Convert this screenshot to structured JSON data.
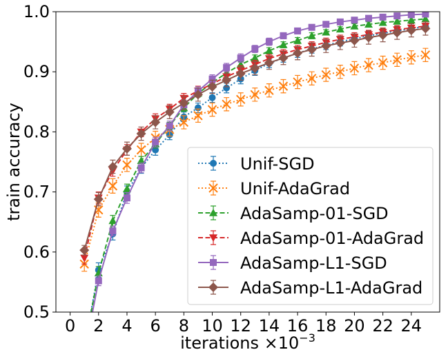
{
  "chart_data": {
    "type": "line",
    "xlabel": "iterations ×10",
    "xlabel_exponent": "−3",
    "ylabel": "train accuracy",
    "xlim": [
      -1,
      26
    ],
    "ylim": [
      0.5,
      1.0
    ],
    "xticks": [
      0,
      2,
      4,
      6,
      8,
      10,
      12,
      14,
      16,
      18,
      20,
      22,
      24
    ],
    "yticks": [
      0.5,
      0.6,
      0.7,
      0.8,
      0.9,
      1.0
    ],
    "ytick_labels": [
      "0.5",
      "0.6",
      "0.7",
      "0.8",
      "0.9",
      "1.0"
    ],
    "grid": false,
    "legend_position": "lower-right",
    "x": [
      1,
      2,
      3,
      4,
      5,
      6,
      7,
      8,
      9,
      10,
      11,
      12,
      13,
      14,
      15,
      16,
      17,
      18,
      19,
      20,
      21,
      22,
      23,
      24,
      25
    ],
    "series": [
      {
        "name": "Unif-SGD",
        "color": "#1f77b4",
        "linestyle": "dotted",
        "marker": "circle",
        "values": [
          0.44,
          0.57,
          0.63,
          0.7,
          0.74,
          0.77,
          0.795,
          0.825,
          0.84,
          0.857,
          0.873,
          0.888,
          0.902,
          0.914,
          0.923,
          0.931,
          0.938,
          0.944,
          0.95,
          0.955,
          0.96,
          0.964,
          0.968,
          0.972,
          0.975
        ],
        "errors": [
          0.01,
          0.012,
          0.01,
          0.01,
          0.009,
          0.009,
          0.008,
          0.008,
          0.008,
          0.008,
          0.008,
          0.008,
          0.008,
          0.007,
          0.007,
          0.007,
          0.007,
          0.007,
          0.007,
          0.006,
          0.006,
          0.006,
          0.006,
          0.006,
          0.006
        ]
      },
      {
        "name": "Unif-AdaGrad",
        "color": "#ff7f0e",
        "linestyle": "dotted",
        "marker": "x",
        "values": [
          0.58,
          0.67,
          0.71,
          0.745,
          0.77,
          0.79,
          0.804,
          0.816,
          0.827,
          0.837,
          0.846,
          0.854,
          0.862,
          0.869,
          0.876,
          0.883,
          0.889,
          0.895,
          0.9,
          0.906,
          0.911,
          0.915,
          0.92,
          0.924,
          0.928
        ],
        "errors": [
          0.012,
          0.012,
          0.012,
          0.011,
          0.011,
          0.011,
          0.011,
          0.011,
          0.011,
          0.011,
          0.011,
          0.011,
          0.011,
          0.011,
          0.011,
          0.011,
          0.011,
          0.011,
          0.011,
          0.011,
          0.011,
          0.011,
          0.011,
          0.011,
          0.011
        ]
      },
      {
        "name": "AdaSamp-01-SGD",
        "color": "#2ca02c",
        "linestyle": "dashed",
        "marker": "triangle-up",
        "values": [
          0.44,
          0.565,
          0.652,
          0.705,
          0.752,
          0.78,
          0.81,
          0.84,
          0.864,
          0.882,
          0.898,
          0.912,
          0.923,
          0.935,
          0.945,
          0.952,
          0.96,
          0.966,
          0.971,
          0.976,
          0.979,
          0.982,
          0.984,
          0.986,
          0.988
        ],
        "errors": [
          0.01,
          0.011,
          0.009,
          0.008,
          0.007,
          0.007,
          0.006,
          0.006,
          0.006,
          0.006,
          0.005,
          0.005,
          0.005,
          0.005,
          0.005,
          0.005,
          0.005,
          0.004,
          0.004,
          0.004,
          0.004,
          0.004,
          0.004,
          0.004,
          0.004
        ]
      },
      {
        "name": "AdaSamp-01-AdaGrad",
        "color": "#d62728",
        "linestyle": "dashed",
        "marker": "triangle-down",
        "values": [
          0.59,
          0.69,
          0.735,
          0.77,
          0.8,
          0.822,
          0.838,
          0.856,
          0.868,
          0.88,
          0.892,
          0.902,
          0.912,
          0.922,
          0.93,
          0.937,
          0.943,
          0.949,
          0.954,
          0.958,
          0.962,
          0.966,
          0.97,
          0.973,
          0.976
        ],
        "errors": [
          0.01,
          0.01,
          0.009,
          0.009,
          0.008,
          0.008,
          0.008,
          0.008,
          0.008,
          0.008,
          0.008,
          0.008,
          0.007,
          0.007,
          0.007,
          0.007,
          0.007,
          0.007,
          0.007,
          0.007,
          0.007,
          0.007,
          0.007,
          0.007,
          0.007
        ]
      },
      {
        "name": "AdaSamp-L1-SGD",
        "color": "#9467bd",
        "linestyle": "solid",
        "marker": "square",
        "values": [
          0.43,
          0.552,
          0.635,
          0.69,
          0.74,
          0.783,
          0.81,
          0.845,
          0.868,
          0.888,
          0.907,
          0.923,
          0.938,
          0.95,
          0.96,
          0.968,
          0.974,
          0.979,
          0.983,
          0.986,
          0.989,
          0.991,
          0.993,
          0.995,
          0.996
        ],
        "errors": [
          0.01,
          0.008,
          0.008,
          0.009,
          0.008,
          0.008,
          0.008,
          0.008,
          0.007,
          0.007,
          0.007,
          0.007,
          0.006,
          0.006,
          0.005,
          0.005,
          0.004,
          0.004,
          0.004,
          0.003,
          0.003,
          0.003,
          0.003,
          0.003,
          0.003
        ]
      },
      {
        "name": "AdaSamp-L1-AdaGrad",
        "color": "#8c564b",
        "linestyle": "solid",
        "marker": "diamond",
        "values": [
          0.603,
          0.688,
          0.742,
          0.772,
          0.797,
          0.816,
          0.833,
          0.848,
          0.862,
          0.875,
          0.886,
          0.897,
          0.906,
          0.915,
          0.923,
          0.931,
          0.937,
          0.943,
          0.948,
          0.952,
          0.957,
          0.961,
          0.965,
          0.969,
          0.972
        ],
        "errors": [
          0.008,
          0.011,
          0.011,
          0.011,
          0.011,
          0.011,
          0.011,
          0.011,
          0.011,
          0.011,
          0.011,
          0.011,
          0.011,
          0.011,
          0.011,
          0.011,
          0.011,
          0.011,
          0.011,
          0.011,
          0.011,
          0.011,
          0.011,
          0.011,
          0.011
        ]
      }
    ]
  }
}
